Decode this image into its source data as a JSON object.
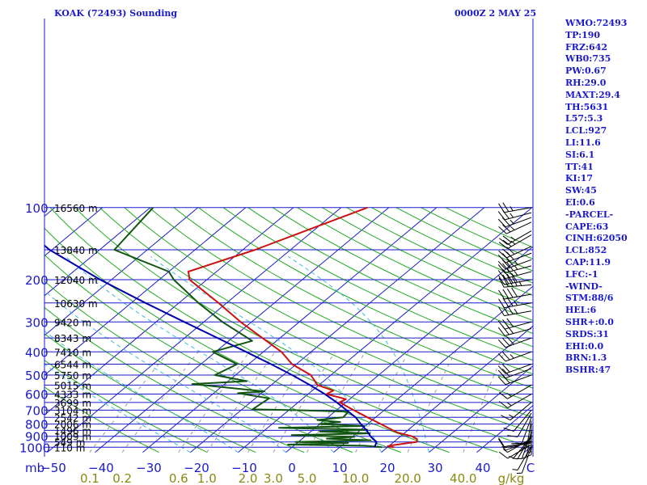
{
  "header": {
    "station": "KOAK (72493) Sounding",
    "time": "0000Z  2 MAY 25"
  },
  "indices": [
    "WMO:72493",
    "TP:190",
    "FRZ:642",
    "WB0:735",
    "PW:0.67",
    "RH:29.0",
    "MAXT:29.4",
    "TH:5631",
    "L57:5.3",
    "LCL:927",
    "LI:11.6",
    "SI:6.1",
    "TT:41",
    "KI:17",
    "SW:45",
    "EI:0.6",
    "-PARCEL-",
    "CAPE:63",
    "CINH:62050",
    "LCL:852",
    "CAP:11.9",
    "LFC:-1",
    "-WIND-",
    "STM:88/6",
    "HEL:6",
    "SHR+:0.0",
    "SRDS:31",
    "EHI:0.0",
    "BRN:1.3",
    "BSHR:47"
  ],
  "colors": {
    "isobar": "#1a1acc",
    "dry_adiabat": "#22aa22",
    "isotherm": "#1a1acc",
    "mixing_ratio": "#999999",
    "moist_adiabat": "#44bbdd",
    "temperature": "#cc1111",
    "dewpoint": "#115511",
    "parcel": "#0000aa",
    "mixing_label": "#8a8a10"
  },
  "chart_data": {
    "type": "line",
    "chart_kind": "skew-T log-p sounding",
    "ylabel": "mb",
    "xlabel_units": "g/kg",
    "pressure_ticks": [
      {
        "p": 100,
        "label": "100"
      },
      {
        "p": 200,
        "label": "200"
      },
      {
        "p": 300,
        "label": "300"
      },
      {
        "p": 400,
        "label": "400"
      },
      {
        "p": 500,
        "label": "500"
      },
      {
        "p": 600,
        "label": "600"
      },
      {
        "p": 700,
        "label": "700"
      },
      {
        "p": 800,
        "label": "800"
      },
      {
        "p": 900,
        "label": "900"
      },
      {
        "p": 1000,
        "label": "1000"
      }
    ],
    "height_labels": [
      {
        "p": 100,
        "label": "16560 m"
      },
      {
        "p": 150,
        "label": "13840 m"
      },
      {
        "p": 200,
        "label": "12040 m"
      },
      {
        "p": 250,
        "label": "10630 m"
      },
      {
        "p": 300,
        "label": "9420 m"
      },
      {
        "p": 350,
        "label": "8343 m"
      },
      {
        "p": 400,
        "label": "7410 m"
      },
      {
        "p": 450,
        "label": "6544 m"
      },
      {
        "p": 500,
        "label": "5750 m"
      },
      {
        "p": 550,
        "label": "5015 m"
      },
      {
        "p": 600,
        "label": "4333 m"
      },
      {
        "p": 650,
        "label": "3699 m"
      },
      {
        "p": 700,
        "label": "3104 m"
      },
      {
        "p": 750,
        "label": "2542 m"
      },
      {
        "p": 800,
        "label": "2006 m"
      },
      {
        "p": 850,
        "label": "1496 m"
      },
      {
        "p": 900,
        "label": "1009 m"
      },
      {
        "p": 950,
        "label": "549 m"
      },
      {
        "p": 1000,
        "label": "110 m"
      }
    ],
    "temperature_ticks": [
      {
        "t": -50,
        "label": "−50"
      },
      {
        "t": -40,
        "label": "−40"
      },
      {
        "t": -30,
        "label": "−30"
      },
      {
        "t": -20,
        "label": "−20"
      },
      {
        "t": -10,
        "label": "−10"
      },
      {
        "t": 0,
        "label": "0"
      },
      {
        "t": 10,
        "label": "10"
      },
      {
        "t": 20,
        "label": "20"
      },
      {
        "t": 30,
        "label": "30"
      },
      {
        "t": 40,
        "label": "40"
      },
      {
        "t": 50,
        "label": "C"
      }
    ],
    "mixing_ratio_ticks": [
      {
        "w": 0.1,
        "label": "0.1"
      },
      {
        "w": 0.2,
        "label": "0.2"
      },
      {
        "w": 0.6,
        "label": "0.6"
      },
      {
        "w": 1.0,
        "label": "1.0"
      },
      {
        "w": 2.0,
        "label": "2.0"
      },
      {
        "w": 3.0,
        "label": "3.0"
      },
      {
        "w": 5.0,
        "label": "5.0"
      },
      {
        "w": 10.0,
        "label": "10.0"
      },
      {
        "w": 20.0,
        "label": "20.0"
      },
      {
        "w": 40.0,
        "label": "40.0"
      }
    ],
    "pressure_range": [
      1050,
      100
    ],
    "temperature_range_at_surface": [
      -50,
      50
    ],
    "series": [
      {
        "name": "temperature",
        "p": [
          1000,
          990,
          980,
          950,
          925,
          900,
          870,
          850,
          800,
          750,
          700,
          650,
          630,
          600,
          580,
          550,
          500,
          450,
          400,
          350,
          300,
          250,
          200,
          185,
          150,
          100
        ],
        "t": [
          21.4,
          19.8,
          20.6,
          24.8,
          24.2,
          22.4,
          18.6,
          16.9,
          12.8,
          8.3,
          3.6,
          -1.3,
          -0.8,
          -6.1,
          -5.6,
          -10.3,
          -14.2,
          -20.9,
          -26.2,
          -33.7,
          -42.3,
          -51.7,
          -63.6,
          -65.9,
          -57.4,
          -44.5
        ]
      },
      {
        "name": "dewpoint",
        "p": [
          1000,
          985,
          975,
          960,
          950,
          935,
          920,
          905,
          890,
          875,
          860,
          845,
          830,
          815,
          800,
          785,
          770,
          750,
          710,
          700,
          695,
          625,
          595,
          585,
          545,
          530,
          500,
          450,
          400,
          360,
          300,
          250,
          200,
          185,
          150,
          100
        ],
        "t": [
          18.9,
          14.9,
          -1.5,
          10.7,
          -0.6,
          14.7,
          5.1,
          10.5,
          -3.1,
          12.8,
          1.9,
          11.4,
          -7.6,
          9.8,
          -0.2,
          3.8,
          -1.5,
          3.2,
          2.9,
          -9.1,
          -17.8,
          -17.1,
          -24.9,
          -19.8,
          -36.8,
          -26.1,
          -34.3,
          -32.4,
          -40.6,
          -35.1,
          -46.1,
          -55.9,
          -66.9,
          -70.0,
          -86.9,
          -89.4
        ]
      },
      {
        "name": "parcel",
        "p": [
          1000,
          950,
          925,
          900,
          850,
          800,
          750,
          700,
          650,
          600,
          550,
          500,
          450,
          400,
          350,
          300,
          250,
          200,
          150,
          100
        ],
        "t": [
          17.3,
          16.4,
          15.0,
          13.7,
          11.4,
          8.6,
          5.8,
          2.1,
          -1.9,
          -6.5,
          -11.9,
          -18.1,
          -25.3,
          -33.6,
          -43.1,
          -54.1,
          -67.0,
          -82.3,
          -100.5,
          -121.5
        ]
      }
    ],
    "dry_adiabats_theta_c": [
      -30,
      -20,
      -10,
      0,
      10,
      20,
      30,
      40,
      50,
      60,
      70,
      80,
      90,
      100,
      110,
      120,
      130,
      140,
      150,
      160,
      170,
      180,
      190,
      200
    ],
    "moist_adiabats_c": [
      -20,
      -10,
      0,
      10,
      20,
      30
    ],
    "mixing_ratio_lines_gkg": [
      0.1,
      0.2,
      0.6,
      1.0,
      2.0,
      3.0,
      5.0,
      10.0,
      20.0,
      40.0
    ],
    "wind_barbs": [
      {
        "p": 1000,
        "dir": 200,
        "kt": 5
      },
      {
        "p": 990,
        "dir": 210,
        "kt": 5
      },
      {
        "p": 975,
        "dir": 240,
        "kt": 10
      },
      {
        "p": 960,
        "dir": 260,
        "kt": 10
      },
      {
        "p": 950,
        "dir": 260,
        "kt": 10
      },
      {
        "p": 940,
        "dir": 250,
        "kt": 5
      },
      {
        "p": 920,
        "dir": 240,
        "kt": 5
      },
      {
        "p": 905,
        "dir": 220,
        "kt": 5
      },
      {
        "p": 890,
        "dir": 210,
        "kt": 5
      },
      {
        "p": 870,
        "dir": 200,
        "kt": 5
      },
      {
        "p": 850,
        "dir": 190,
        "kt": 5
      },
      {
        "p": 825,
        "dir": 180,
        "kt": 5
      },
      {
        "p": 800,
        "dir": 180,
        "kt": 5
      },
      {
        "p": 775,
        "dir": 190,
        "kt": 5
      },
      {
        "p": 750,
        "dir": 200,
        "kt": 10
      },
      {
        "p": 720,
        "dir": 210,
        "kt": 10
      },
      {
        "p": 700,
        "dir": 220,
        "kt": 10
      },
      {
        "p": 650,
        "dir": 230,
        "kt": 15
      },
      {
        "p": 600,
        "dir": 240,
        "kt": 15
      },
      {
        "p": 550,
        "dir": 240,
        "kt": 15
      },
      {
        "p": 500,
        "dir": 250,
        "kt": 20
      },
      {
        "p": 470,
        "dir": 250,
        "kt": 20
      },
      {
        "p": 450,
        "dir": 250,
        "kt": 20
      },
      {
        "p": 400,
        "dir": 250,
        "kt": 25
      },
      {
        "p": 350,
        "dir": 250,
        "kt": 30
      },
      {
        "p": 320,
        "dir": 255,
        "kt": 30
      },
      {
        "p": 300,
        "dir": 255,
        "kt": 30
      },
      {
        "p": 270,
        "dir": 260,
        "kt": 35
      },
      {
        "p": 250,
        "dir": 260,
        "kt": 35
      },
      {
        "p": 230,
        "dir": 260,
        "kt": 40
      },
      {
        "p": 210,
        "dir": 265,
        "kt": 45
      },
      {
        "p": 200,
        "dir": 260,
        "kt": 40
      },
      {
        "p": 185,
        "dir": 255,
        "kt": 35
      },
      {
        "p": 175,
        "dir": 255,
        "kt": 35
      },
      {
        "p": 165,
        "dir": 250,
        "kt": 35
      },
      {
        "p": 155,
        "dir": 250,
        "kt": 30
      },
      {
        "p": 145,
        "dir": 245,
        "kt": 30
      },
      {
        "p": 130,
        "dir": 240,
        "kt": 25
      },
      {
        "p": 125,
        "dir": 240,
        "kt": 25
      },
      {
        "p": 115,
        "dir": 245,
        "kt": 25
      },
      {
        "p": 110,
        "dir": 250,
        "kt": 25
      },
      {
        "p": 105,
        "dir": 255,
        "kt": 25
      },
      {
        "p": 100,
        "dir": 260,
        "kt": 25
      }
    ]
  }
}
